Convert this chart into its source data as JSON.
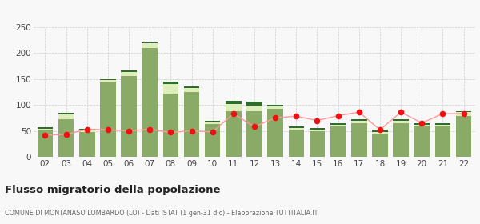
{
  "years": [
    "02",
    "03",
    "04",
    "05",
    "06",
    "07",
    "08",
    "09",
    "10",
    "11",
    "12",
    "13",
    "14",
    "15",
    "16",
    "17",
    "18",
    "19",
    "20",
    "21",
    "22"
  ],
  "iscritti_altri_comuni": [
    52,
    73,
    47,
    143,
    155,
    210,
    122,
    125,
    63,
    87,
    88,
    92,
    52,
    50,
    60,
    65,
    43,
    65,
    60,
    60,
    78
  ],
  "iscritti_estero": [
    2,
    8,
    5,
    5,
    8,
    8,
    18,
    8,
    5,
    15,
    10,
    5,
    3,
    3,
    2,
    5,
    5,
    5,
    2,
    2,
    8
  ],
  "iscritti_altri": [
    3,
    3,
    2,
    2,
    3,
    2,
    5,
    2,
    2,
    5,
    8,
    3,
    3,
    2,
    2,
    2,
    4,
    3,
    2,
    3,
    2
  ],
  "cancellati": [
    42,
    43,
    53,
    52,
    50,
    53,
    47,
    50,
    48,
    83,
    58,
    75,
    78,
    70,
    79,
    86,
    52,
    86,
    65,
    83,
    83
  ],
  "color_iscritti_comuni": "#8aaa68",
  "color_iscritti_estero": "#ddeebb",
  "color_iscritti_altri": "#2d6e2d",
  "color_cancellati": "#ee1111",
  "color_line": "#ff9999",
  "ylim": [
    0,
    250
  ],
  "yticks": [
    0,
    50,
    100,
    150,
    200,
    250
  ],
  "title": "Flusso migratorio della popolazione",
  "subtitle": "COMUNE DI MONTANASO LOMBARDO (LO) - Dati ISTAT (1 gen-31 dic) - Elaborazione TUTTITALIA.IT",
  "background_color": "#f8f8f8",
  "grid_color": "#cccccc"
}
